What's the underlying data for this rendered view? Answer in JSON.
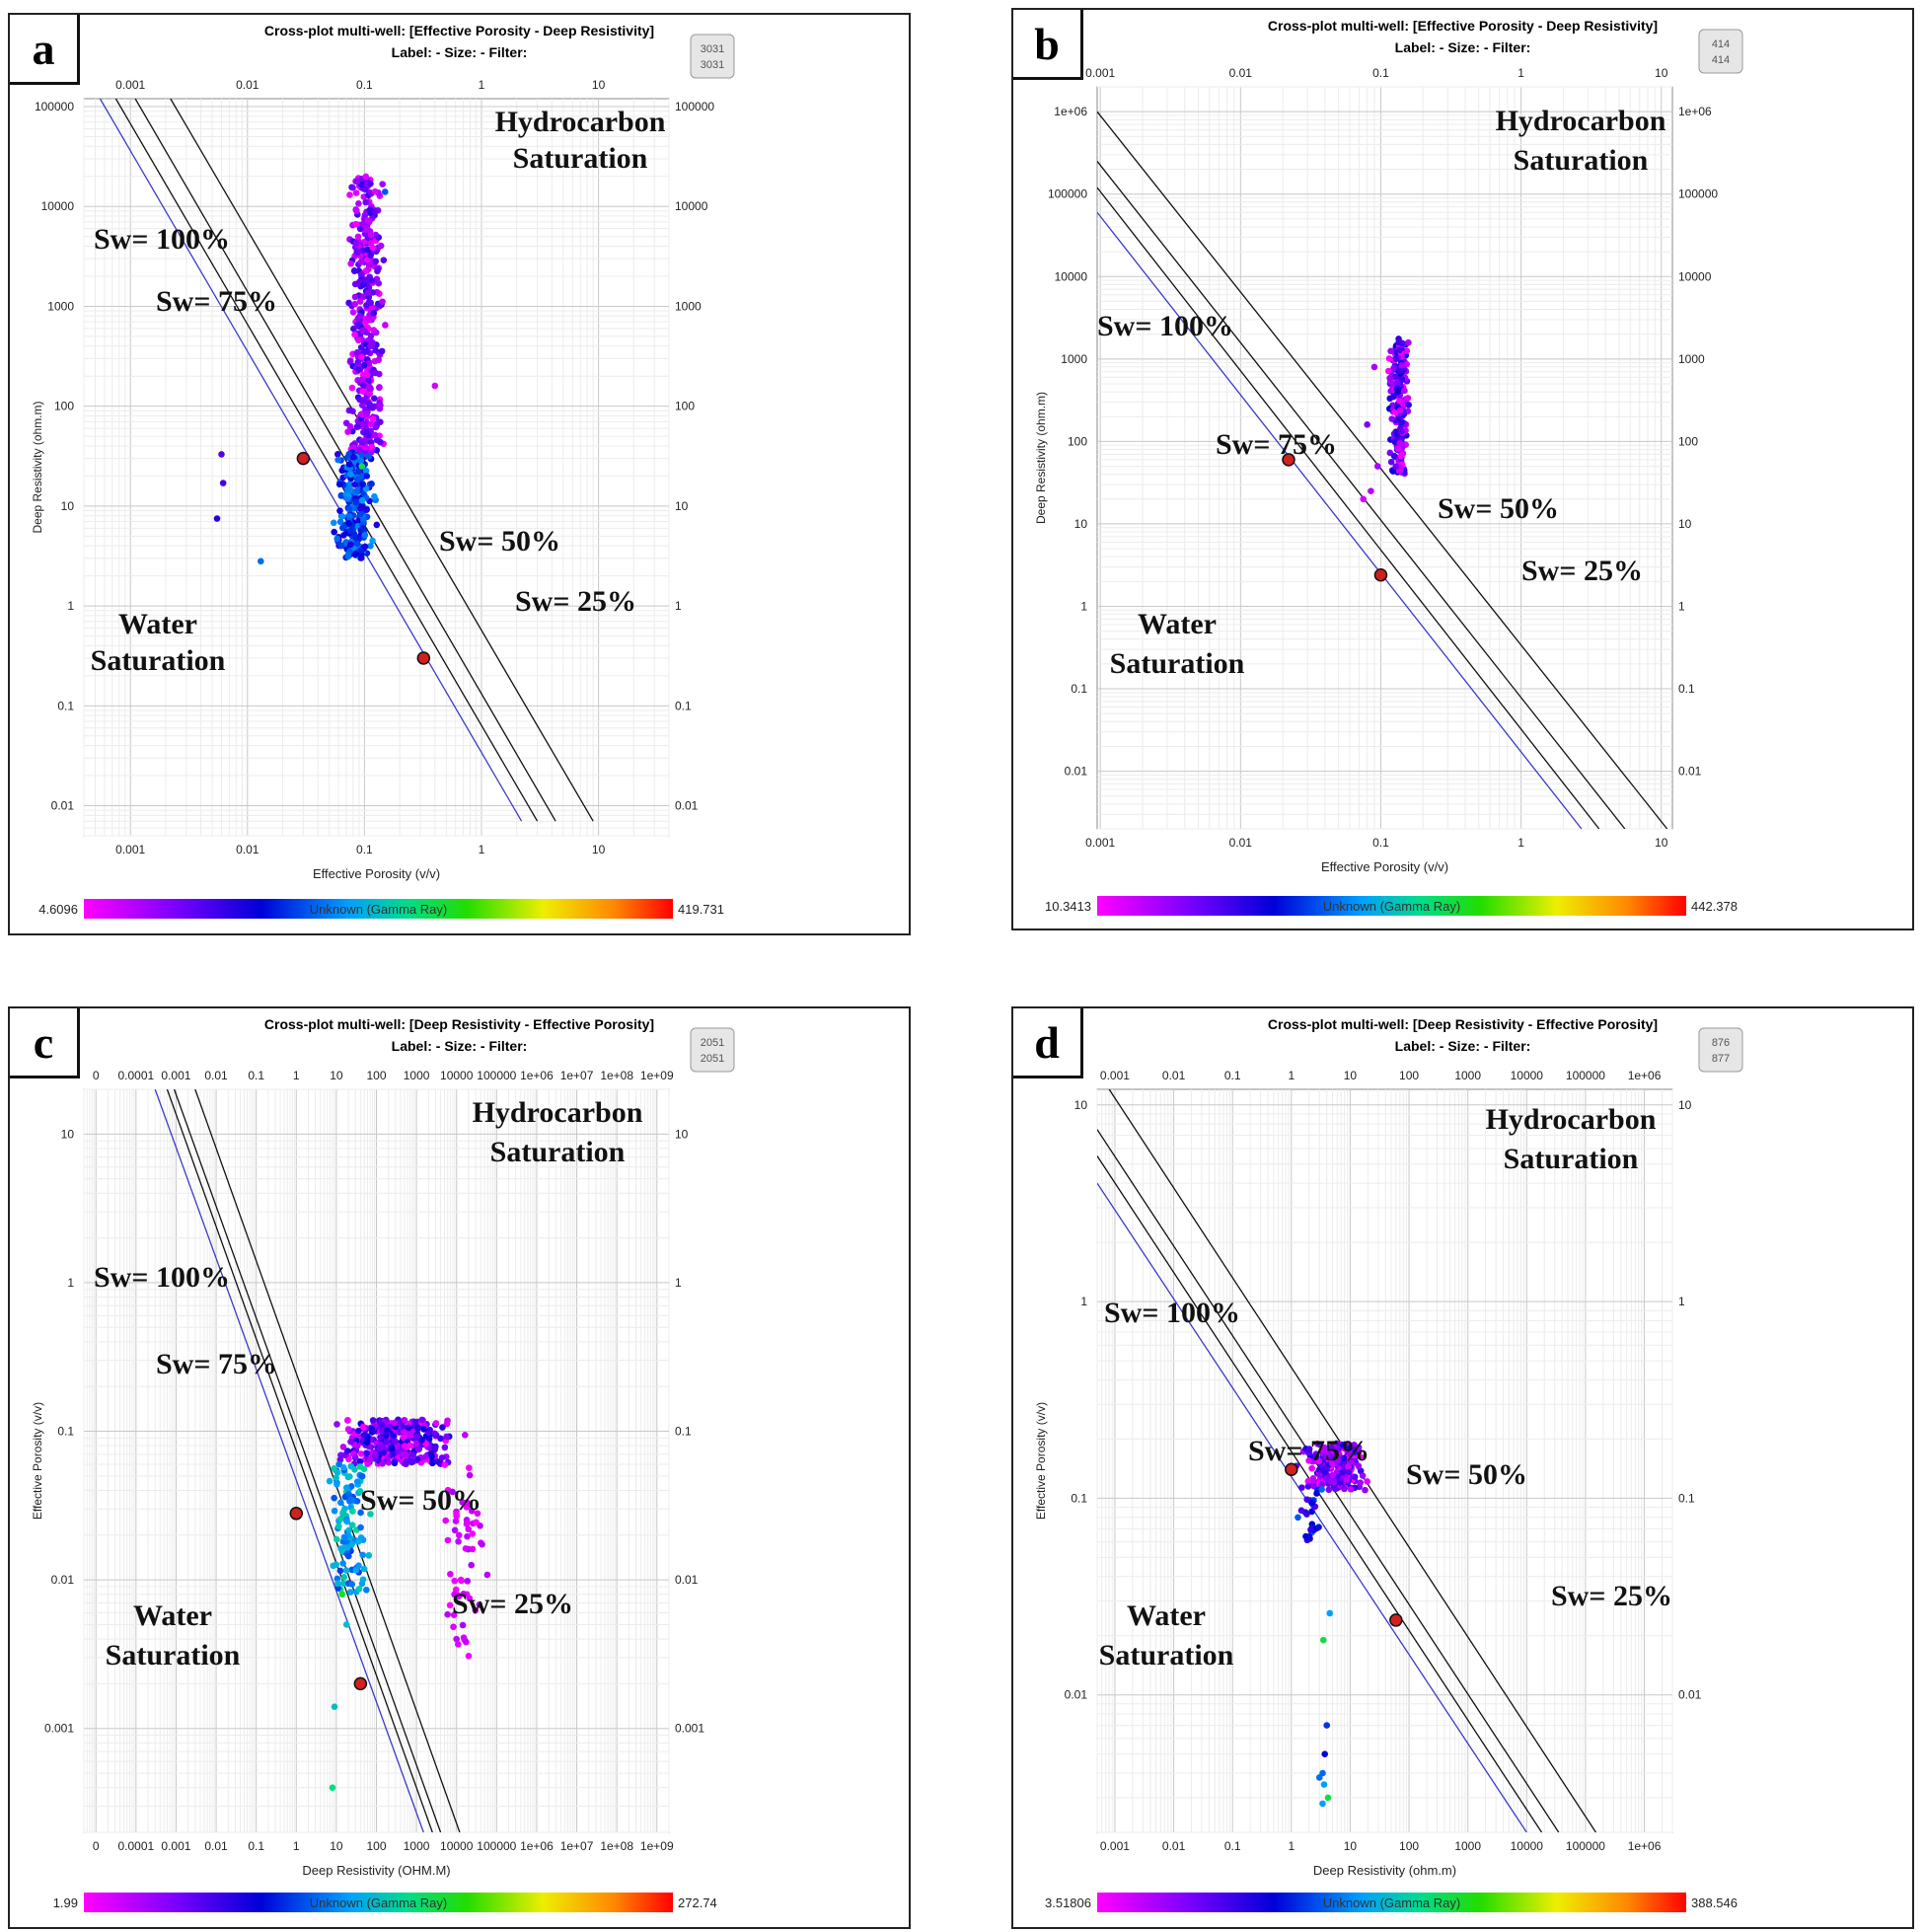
{
  "panels": [
    {
      "letter": "a",
      "title": "Cross-plot multi-well: [Effective Porosity - Deep Resistivity]",
      "subtitle": "Label:  -  Size:  -  Filter:",
      "counter": {
        "top": "3031",
        "bottom": "3031"
      },
      "colorbar": {
        "min": "4.6096",
        "max": "419.731",
        "label": "Unknown (Gamma Ray)"
      },
      "annotations": {
        "hydrocarbon": [
          "Hydrocarbon",
          "Saturation"
        ],
        "water": [
          "Water",
          "Saturation"
        ],
        "sw100": "Sw= 100%",
        "sw75": "Sw= 75%",
        "sw50": "Sw= 50%",
        "sw25": "Sw= 25%"
      }
    },
    {
      "letter": "b",
      "title": "Cross-plot multi-well: [Effective Porosity - Deep Resistivity]",
      "subtitle": "Label:  -  Size:  -  Filter:",
      "counter": {
        "top": "414",
        "bottom": "414"
      },
      "colorbar": {
        "min": "10.3413",
        "max": "442.378",
        "label": "Unknown (Gamma Ray)"
      },
      "annotations": {
        "hydrocarbon": [
          "Hydrocarbon",
          "Saturation"
        ],
        "water": [
          "Water",
          "Saturation"
        ],
        "sw100": "Sw= 100%",
        "sw75": "Sw= 75%",
        "sw50": "Sw= 50%",
        "sw25": "Sw= 25%"
      }
    },
    {
      "letter": "c",
      "title": "Cross-plot multi-well: [Deep Resistivity - Effective Porosity]",
      "subtitle": "Label:  -  Size:  -  Filter:",
      "counter": {
        "top": "2051",
        "bottom": "2051"
      },
      "colorbar": {
        "min": "1.99",
        "max": "272.74",
        "label": "Unknown (Gamma Ray)"
      },
      "annotations": {
        "hydrocarbon": [
          "Hydrocarbon",
          "Saturation"
        ],
        "water": [
          "Water",
          "Saturation"
        ],
        "sw100": "Sw= 100%",
        "sw75": "Sw= 75%",
        "sw50": "Sw= 50%",
        "sw25": "Sw= 25%"
      }
    },
    {
      "letter": "d",
      "title": "Cross-plot multi-well: [Deep Resistivity - Effective Porosity]",
      "subtitle": "Label:  -  Size:  -  Filter:",
      "counter": {
        "top": "876",
        "bottom": "877"
      },
      "colorbar": {
        "min": "3.51806",
        "max": "388.546",
        "label": "Unknown (Gamma Ray)"
      },
      "annotations": {
        "hydrocarbon": [
          "Hydrocarbon",
          "Saturation"
        ],
        "water": [
          "Water",
          "Saturation"
        ],
        "sw100": "Sw= 100%",
        "sw75": "Sw= 75%",
        "sw50": "Sw= 50%",
        "sw25": "Sw= 25%"
      }
    }
  ],
  "chart_data": [
    {
      "type": "scatter",
      "xlabel": "Effective Porosity (v/v)",
      "ylabel": "Deep Resistivity (ohm.m)",
      "xscale": "log",
      "yscale": "log",
      "xlim": [
        0.0004,
        40
      ],
      "ylim": [
        0.005,
        120000
      ],
      "xticks": [
        "0.001",
        "0.01",
        "0.1",
        "1",
        "10"
      ],
      "yticks": [
        "0.01",
        "0.1",
        "1",
        "10",
        "100",
        "1000",
        "10000",
        "100000"
      ],
      "sw_lines": [
        {
          "name": "Sw= 100%",
          "x1": 0.00055,
          "y1": 120000,
          "x2": 2.2,
          "y2": 0.007,
          "color": "#3a3acc"
        },
        {
          "name": "Sw= 75%",
          "x1": 0.00075,
          "y1": 120000,
          "x2": 3.0,
          "y2": 0.007,
          "color": "#111111"
        },
        {
          "name": "Sw= 50%",
          "x1": 0.0011,
          "y1": 120000,
          "x2": 4.3,
          "y2": 0.007,
          "color": "#111111"
        },
        {
          "name": "Sw= 25%",
          "x1": 0.0022,
          "y1": 120000,
          "x2": 9.0,
          "y2": 0.007,
          "color": "#111111"
        }
      ],
      "cal_points": [
        {
          "x": 0.03,
          "y": 30
        },
        {
          "x": 0.32,
          "y": 0.3
        }
      ],
      "clusters": [
        {
          "xmin": 0.065,
          "xmax": 0.16,
          "ymin": 30,
          "ymax": 20000,
          "n": 420,
          "c": [
            0.0,
            0.25
          ]
        },
        {
          "xmin": 0.05,
          "xmax": 0.14,
          "ymin": 3,
          "ymax": 35,
          "n": 260,
          "c": [
            0.25,
            0.45
          ]
        }
      ],
      "points": [
        {
          "x": 0.0055,
          "y": 7.5,
          "c": 0.25
        },
        {
          "x": 0.006,
          "y": 33,
          "c": 0.2
        },
        {
          "x": 0.0062,
          "y": 17,
          "c": 0.22
        },
        {
          "x": 0.013,
          "y": 2.8,
          "c": 0.4
        },
        {
          "x": 0.095,
          "y": 25,
          "c": 0.6
        },
        {
          "x": 0.15,
          "y": 14000,
          "c": 0.38
        },
        {
          "x": 0.4,
          "y": 160,
          "c": 0.05
        }
      ]
    },
    {
      "type": "scatter",
      "xlabel": "Effective Porosity (v/v)",
      "ylabel": "Deep Resistivity (ohm.m)",
      "xscale": "log",
      "yscale": "log",
      "xlim": [
        0.00095,
        12
      ],
      "ylim": [
        0.002,
        2000000
      ],
      "xticks": [
        "0.001",
        "0.01",
        "0.1",
        "1",
        "10"
      ],
      "yticks": [
        "0.01",
        "0.1",
        "1",
        "10",
        "100",
        "1000",
        "10000",
        "100000",
        "1e+06"
      ],
      "sw_lines": [
        {
          "name": "Sw= 100%",
          "x1": 0.00095,
          "y1": 60000,
          "x2": 2.7,
          "y2": 0.002,
          "color": "#3a3acc"
        },
        {
          "name": "Sw= 75%",
          "x1": 0.00095,
          "y1": 120000,
          "x2": 3.6,
          "y2": 0.002,
          "color": "#111111"
        },
        {
          "name": "Sw= 50%",
          "x1": 0.00095,
          "y1": 250000,
          "x2": 5.5,
          "y2": 0.002,
          "color": "#111111"
        },
        {
          "name": "Sw= 25%",
          "x1": 0.00095,
          "y1": 1000000,
          "x2": 11,
          "y2": 0.002,
          "color": "#111111"
        }
      ],
      "cal_points": [
        {
          "x": 0.022,
          "y": 60
        },
        {
          "x": 0.1,
          "y": 2.4
        }
      ],
      "clusters": [
        {
          "xmin": 0.11,
          "xmax": 0.17,
          "ymin": 40,
          "ymax": 1800,
          "n": 200,
          "c": [
            0.0,
            0.3
          ]
        }
      ],
      "points": [
        {
          "x": 0.075,
          "y": 20,
          "c": 0.05
        },
        {
          "x": 0.085,
          "y": 25,
          "c": 0.08
        },
        {
          "x": 0.09,
          "y": 800,
          "c": 0.1
        },
        {
          "x": 0.08,
          "y": 160,
          "c": 0.15
        },
        {
          "x": 0.095,
          "y": 50,
          "c": 0.1
        }
      ]
    },
    {
      "type": "scatter",
      "xlabel": "Deep Resistivity (OHM.M)",
      "ylabel": "Effective Porosity (v/v)",
      "xscale": "log",
      "yscale": "log",
      "xlim": [
        5e-06,
        2000000000.0
      ],
      "ylim": [
        0.0002,
        20
      ],
      "xticks": [
        "0",
        "0.0001",
        "0.001",
        "0.01",
        "0.1",
        "1",
        "10",
        "100",
        "1000",
        "10000",
        "100000",
        "1e+06",
        "1e+07",
        "1e+08",
        "1e+09"
      ],
      "yticks": [
        "0.001",
        "0.01",
        "0.1",
        "1",
        "10"
      ],
      "sw_lines": [
        {
          "name": "Sw= 100%",
          "x1": 0.0003,
          "y1": 20,
          "x2": 1500,
          "y2": 0.0002,
          "color": "#3a3acc"
        },
        {
          "name": "Sw= 75%",
          "x1": 0.0006,
          "y1": 20,
          "x2": 2500,
          "y2": 0.0002,
          "color": "#111111"
        },
        {
          "name": "Sw= 50%",
          "x1": 0.0009,
          "y1": 20,
          "x2": 4000,
          "y2": 0.0002,
          "color": "#111111"
        },
        {
          "name": "Sw= 25%",
          "x1": 0.003,
          "y1": 20,
          "x2": 12000,
          "y2": 0.0002,
          "color": "#111111"
        }
      ],
      "cal_points": [
        {
          "x": 1.0,
          "y": 0.028
        },
        {
          "x": 40,
          "y": 0.002
        }
      ],
      "clusters": [
        {
          "xmin": 5,
          "xmax": 20000,
          "ymin": 0.06,
          "ymax": 0.12,
          "n": 360,
          "c": [
            0.0,
            0.3
          ]
        },
        {
          "xmin": 5,
          "xmax": 100,
          "ymin": 0.008,
          "ymax": 0.06,
          "n": 110,
          "c": [
            0.35,
            0.55
          ]
        },
        {
          "xmin": 3000,
          "xmax": 60000,
          "ymin": 0.003,
          "ymax": 0.06,
          "n": 60,
          "c": [
            0.0,
            0.1
          ]
        }
      ],
      "points": [
        {
          "x": 9,
          "y": 0.0014,
          "c": 0.5
        },
        {
          "x": 8,
          "y": 0.0004,
          "c": 0.55
        },
        {
          "x": 18,
          "y": 0.005,
          "c": 0.5
        },
        {
          "x": 14,
          "y": 0.008,
          "c": 0.62
        }
      ]
    },
    {
      "type": "scatter",
      "xlabel": "Deep Resistivity (ohm.m)",
      "ylabel": "Effective Porosity (v/v)",
      "xscale": "log",
      "yscale": "log",
      "xlim": [
        0.0005,
        3000000
      ],
      "ylim": [
        0.002,
        12
      ],
      "xticks": [
        "0.001",
        "0.01",
        "0.1",
        "1",
        "10",
        "100",
        "1000",
        "10000",
        "100000",
        "1e+06"
      ],
      "yticks": [
        "0.01",
        "0.1",
        "1",
        "10"
      ],
      "sw_lines": [
        {
          "name": "Sw= 100%",
          "x1": 0.0005,
          "y1": 4,
          "x2": 10000,
          "y2": 0.002,
          "color": "#3a3acc"
        },
        {
          "name": "Sw= 75%",
          "x1": 0.0005,
          "y1": 5.5,
          "x2": 18000,
          "y2": 0.002,
          "color": "#111111"
        },
        {
          "name": "Sw= 50%",
          "x1": 0.0005,
          "y1": 7.5,
          "x2": 35000,
          "y2": 0.002,
          "color": "#111111"
        },
        {
          "name": "Sw= 25%",
          "x1": 0.0008,
          "y1": 12,
          "x2": 150000,
          "y2": 0.002,
          "color": "#111111"
        }
      ],
      "cal_points": [
        {
          "x": 1.0,
          "y": 0.14
        },
        {
          "x": 60,
          "y": 0.024
        }
      ],
      "clusters": [
        {
          "xmin": 1,
          "xmax": 30,
          "ymin": 0.11,
          "ymax": 0.19,
          "n": 220,
          "c": [
            0.0,
            0.28
          ]
        },
        {
          "xmin": 1,
          "xmax": 4,
          "ymin": 0.055,
          "ymax": 0.12,
          "n": 25,
          "c": [
            0.2,
            0.45
          ]
        }
      ],
      "points": [
        {
          "x": 4.5,
          "y": 0.026,
          "c": 0.45
        },
        {
          "x": 3.5,
          "y": 0.019,
          "c": 0.6
        },
        {
          "x": 4,
          "y": 0.007,
          "c": 0.35
        },
        {
          "x": 3.7,
          "y": 0.005,
          "c": 0.3
        },
        {
          "x": 3.4,
          "y": 0.004,
          "c": 0.4
        },
        {
          "x": 3.6,
          "y": 0.0035,
          "c": 0.45
        },
        {
          "x": 4.2,
          "y": 0.003,
          "c": 0.6
        },
        {
          "x": 3.4,
          "y": 0.0028,
          "c": 0.45
        },
        {
          "x": 3.0,
          "y": 0.0038,
          "c": 0.4
        }
      ]
    }
  ]
}
